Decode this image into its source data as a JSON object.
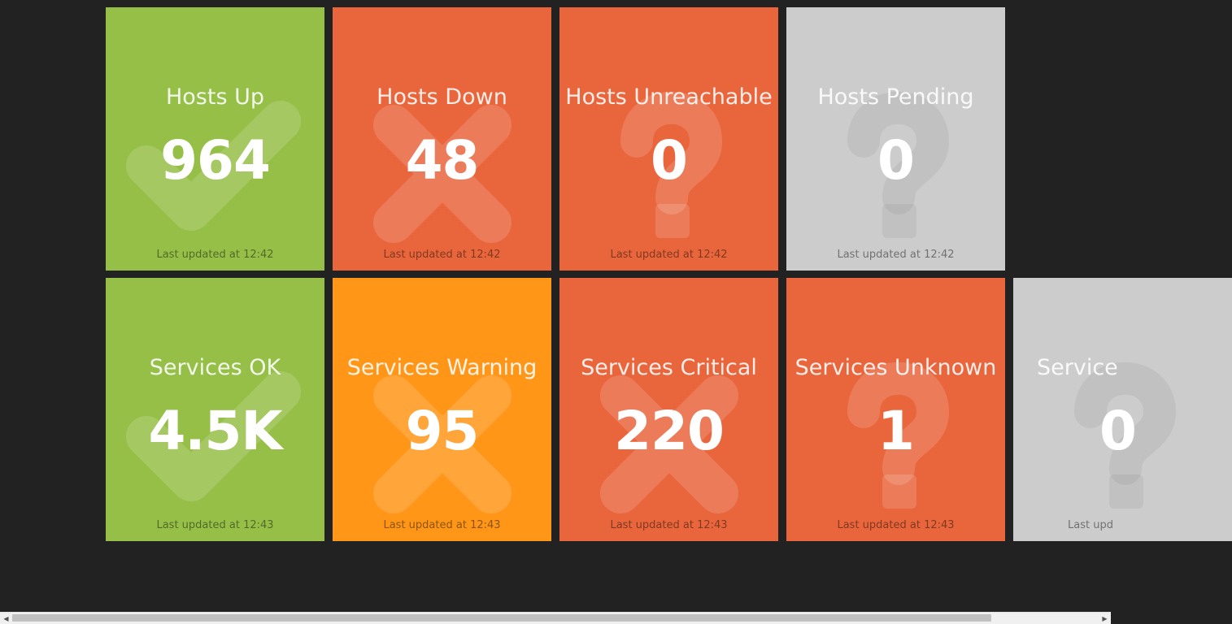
{
  "colors": {
    "background": "#222222",
    "ok": "#96bf48",
    "critical": "#e9663c",
    "warning": "#ff9618",
    "pending": "#cccccc"
  },
  "tiles": [
    {
      "title": "Hosts Up",
      "value": "964",
      "updated": "Last updated at 12:42",
      "status": "ok",
      "icon": "check-icon"
    },
    {
      "title": "Hosts Down",
      "value": "48",
      "updated": "Last updated at 12:42",
      "status": "critical",
      "icon": "x-icon"
    },
    {
      "title": "Hosts Unreachable",
      "value": "0",
      "updated": "Last updated at 12:42",
      "status": "critical",
      "icon": "question-icon"
    },
    {
      "title": "Hosts Pending",
      "value": "0",
      "updated": "Last updated at 12:42",
      "status": "pending",
      "icon": "question-icon"
    },
    {
      "title": "Services OK",
      "value": "4.5K",
      "updated": "Last updated at 12:43",
      "status": "ok",
      "icon": "check-icon"
    },
    {
      "title": "Services Warning",
      "value": "95",
      "updated": "Last updated at 12:43",
      "status": "warning",
      "icon": "x-icon"
    },
    {
      "title": "Services Critical",
      "value": "220",
      "updated": "Last updated at 12:43",
      "status": "critical",
      "icon": "x-icon"
    },
    {
      "title": "Services Unknown",
      "value": "1",
      "updated": "Last updated at 12:43",
      "status": "critical",
      "icon": "question-icon"
    },
    {
      "title": "Service",
      "value": "0",
      "updated": "Last upd",
      "status": "pending",
      "icon": "question-icon"
    }
  ],
  "scrollbar": {
    "left_arrow": "◀",
    "right_arrow": "▶"
  }
}
